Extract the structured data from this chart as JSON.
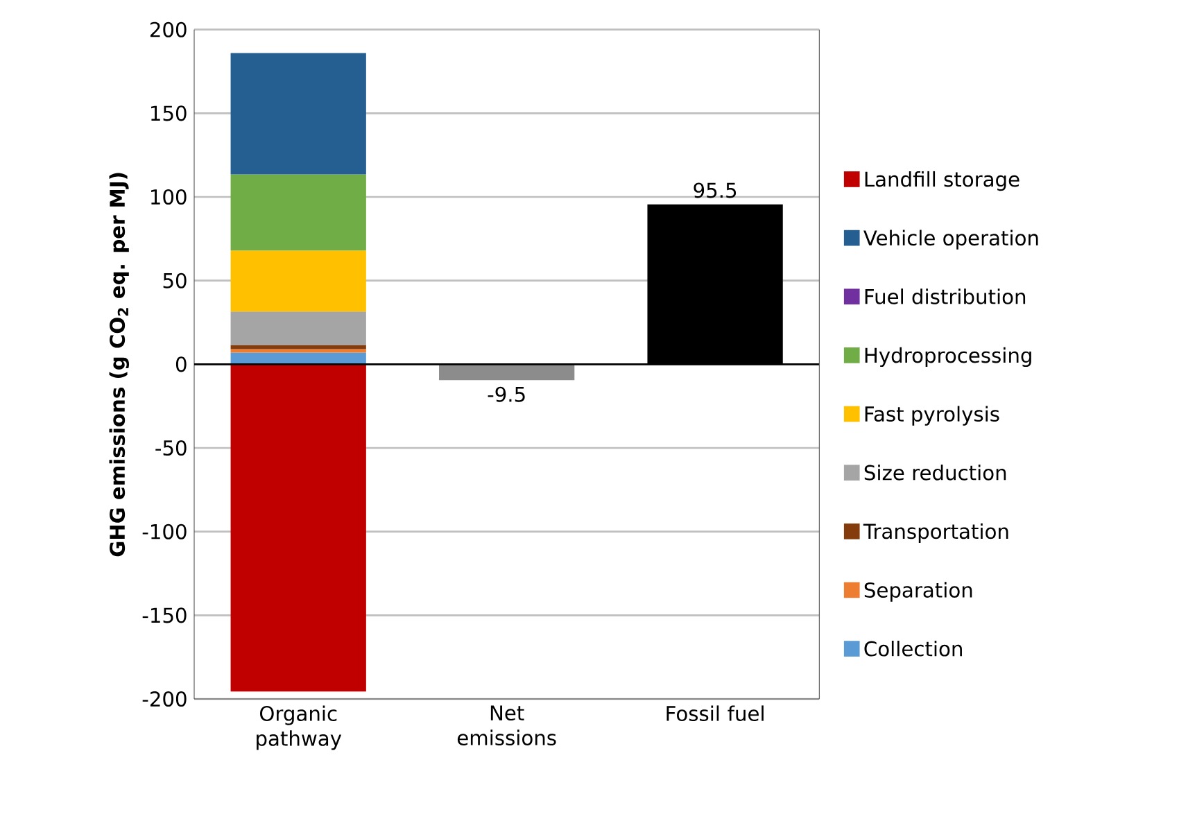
{
  "chart_data": {
    "type": "bar",
    "stacked": true,
    "ylabel": "GHG emissions (g CO$_{2}$ eq. per MJ)",
    "categories": [
      "Organic pathway",
      "Net emissions",
      "Fossil fuel"
    ],
    "ylim": [
      -200,
      200
    ],
    "yticks": [
      -200,
      -150,
      -100,
      -50,
      0,
      50,
      100,
      150,
      200
    ],
    "grid": "y",
    "legend": "right",
    "series": [
      {
        "name": "Collection",
        "color": "#5b9bd5",
        "values": [
          7,
          null,
          null
        ]
      },
      {
        "name": "Separation",
        "color": "#ed7d31",
        "values": [
          2,
          null,
          null
        ]
      },
      {
        "name": "Transportation",
        "color": "#843c0c",
        "values": [
          2.5,
          null,
          null
        ]
      },
      {
        "name": "Size reduction",
        "color": "#a5a5a5",
        "values": [
          20,
          null,
          null
        ]
      },
      {
        "name": "Fast pyrolysis",
        "color": "#ffc000",
        "values": [
          36.5,
          null,
          null
        ]
      },
      {
        "name": "Hydroprocessing",
        "color": "#70ad47",
        "values": [
          45.5,
          null,
          null
        ]
      },
      {
        "name": "Fuel distribution",
        "color": "#7030a0",
        "values": [
          0,
          null,
          null
        ]
      },
      {
        "name": "Vehicle operation",
        "color": "#255e91",
        "values": [
          72.5,
          null,
          null
        ]
      },
      {
        "name": "Landfill storage",
        "color": "#c00000",
        "values": [
          -195.5,
          null,
          null
        ]
      },
      {
        "color": "#8c8c8c",
        "values": [
          null,
          -9.5,
          null
        ],
        "value_labels": [
          null,
          "-9.5",
          null
        ]
      },
      {
        "color": "#000000",
        "values": [
          null,
          null,
          95.5
        ],
        "value_labels": [
          null,
          null,
          "95.5"
        ]
      }
    ]
  }
}
